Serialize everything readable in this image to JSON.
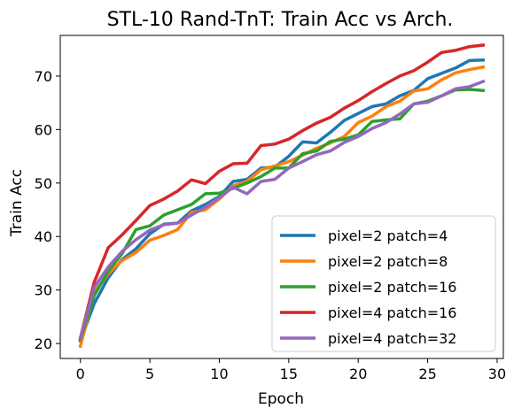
{
  "chart_data": {
    "type": "line",
    "title": "STL-10 Rand-TnT: Train Acc vs Arch.",
    "xlabel": "Epoch",
    "ylabel": "Train Acc",
    "xlim": [
      -1.45,
      30.45
    ],
    "ylim": [
      17.2,
      77.6
    ],
    "xticks": [
      0,
      5,
      10,
      15,
      20,
      25,
      30
    ],
    "yticks": [
      20,
      30,
      40,
      50,
      60,
      70
    ],
    "grid": false,
    "legend_position": "lower-right",
    "x": [
      0,
      1,
      2,
      3,
      4,
      5,
      6,
      7,
      8,
      9,
      10,
      11,
      12,
      13,
      14,
      15,
      16,
      17,
      18,
      19,
      20,
      21,
      22,
      23,
      24,
      25,
      26,
      27,
      28,
      29
    ],
    "series": [
      {
        "name": "pixel=2 patch=4",
        "color": "#1f77b4",
        "values": [
          20.5,
          27.5,
          32.3,
          35.7,
          37.7,
          40.5,
          42.3,
          42.5,
          44.8,
          46.0,
          47.5,
          50.3,
          50.7,
          52.8,
          53.0,
          55.0,
          57.7,
          57.5,
          59.5,
          61.7,
          63.0,
          64.3,
          64.8,
          66.3,
          67.3,
          69.5,
          70.5,
          71.5,
          72.9,
          73.0
        ]
      },
      {
        "name": "pixel=2 patch=8",
        "color": "#ff7f0e",
        "values": [
          19.5,
          29.5,
          33.0,
          35.5,
          37.0,
          39.3,
          40.2,
          41.3,
          44.5,
          45.0,
          47.0,
          49.5,
          50.3,
          52.5,
          53.2,
          54.0,
          55.2,
          56.5,
          57.5,
          58.7,
          61.3,
          62.5,
          64.3,
          65.3,
          67.2,
          67.6,
          69.3,
          70.6,
          71.2,
          71.7
        ]
      },
      {
        "name": "pixel=2 patch=16",
        "color": "#2ca02c",
        "values": [
          20.8,
          29.0,
          33.5,
          36.8,
          41.3,
          42.0,
          44.0,
          45.0,
          46.0,
          48.0,
          48.1,
          49.0,
          50.0,
          51.2,
          52.8,
          52.8,
          55.5,
          56.0,
          57.8,
          58.2,
          59.0,
          61.5,
          61.8,
          62.0,
          64.8,
          65.3,
          66.3,
          67.4,
          67.5,
          67.3
        ]
      },
      {
        "name": "pixel=4 patch=16",
        "color": "#d62728",
        "values": [
          21.0,
          31.5,
          37.9,
          40.3,
          43.0,
          45.8,
          47.0,
          48.5,
          50.6,
          49.9,
          52.2,
          53.6,
          53.7,
          57.0,
          57.3,
          58.2,
          59.8,
          61.2,
          62.3,
          64.0,
          65.4,
          67.1,
          68.6,
          70.0,
          71.0,
          72.6,
          74.4,
          74.8,
          75.5,
          75.8
        ]
      },
      {
        "name": "pixel=4 patch=32",
        "color": "#9467bd",
        "values": [
          21.0,
          30.5,
          34.3,
          37.2,
          39.4,
          41.2,
          42.2,
          42.5,
          44.0,
          45.5,
          47.3,
          49.2,
          48.0,
          50.3,
          50.7,
          52.8,
          54.0,
          55.3,
          56.0,
          57.6,
          58.7,
          60.2,
          61.3,
          62.9,
          64.8,
          65.1,
          66.3,
          67.6,
          68.0,
          69.0
        ]
      }
    ]
  }
}
